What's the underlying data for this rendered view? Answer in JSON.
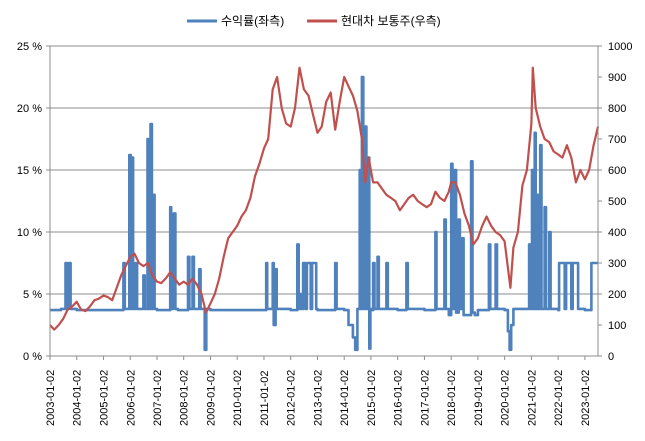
{
  "chart_data": {
    "type": "line",
    "title": "",
    "legend": {
      "position": "top",
      "entries": [
        {
          "name": "수익률(좌측)",
          "color": "#4F81BD"
        },
        {
          "name": "현대차 보통주(우측)",
          "color": "#C0504D"
        }
      ]
    },
    "grid": true,
    "y_left": {
      "label": "",
      "ylim": [
        0,
        25
      ],
      "ticks": [
        0,
        5,
        10,
        15,
        20,
        25
      ],
      "tick_labels": [
        "0 %",
        "5 %",
        "10 %",
        "15 %",
        "20 %",
        "25 %"
      ]
    },
    "y_right": {
      "label": "",
      "ylim": [
        0,
        1000
      ],
      "ticks": [
        0,
        100,
        200,
        300,
        400,
        500,
        600,
        700,
        800,
        900,
        1000
      ],
      "tick_labels": [
        "0",
        "100",
        "200",
        "300",
        "400",
        "500",
        "600",
        "700",
        "800",
        "900",
        "1000"
      ]
    },
    "x_axis": {
      "range": [
        "2003-01-02",
        "2023-06-30"
      ],
      "tick_labels": [
        "2003-01-02",
        "2004-01-02",
        "2005-01-02",
        "2006-01-02",
        "2007-01-02",
        "2008-01-02",
        "2009-01-02",
        "2010-01-02",
        "2011-01-02",
        "2012-01-02",
        "2013-01-02",
        "2014-01-02",
        "2015-01-02",
        "2016-01-02",
        "2017-01-02",
        "2018-01-02",
        "2019-01-02",
        "2020-01-02",
        "2021-01-02",
        "2022-01-02",
        "2023-01-02"
      ]
    },
    "series": [
      {
        "name": "수익률(좌측)",
        "axis": "left",
        "color": "#4F81BD",
        "points": [
          [
            "2003-01-02",
            3.7
          ],
          [
            "2003-03-01",
            3.7
          ],
          [
            "2003-06-01",
            3.8
          ],
          [
            "2003-08-01",
            7.5
          ],
          [
            "2003-08-20",
            3.8
          ],
          [
            "2003-09-15",
            7.5
          ],
          [
            "2003-10-10",
            3.8
          ],
          [
            "2004-01-02",
            3.7
          ],
          [
            "2005-01-02",
            3.7
          ],
          [
            "2005-06-01",
            3.7
          ],
          [
            "2005-10-01",
            7.5
          ],
          [
            "2005-10-20",
            3.8
          ],
          [
            "2005-12-20",
            16.2
          ],
          [
            "2006-01-10",
            3.8
          ],
          [
            "2006-01-25",
            16.0
          ],
          [
            "2006-02-10",
            3.8
          ],
          [
            "2006-03-15",
            7.5
          ],
          [
            "2006-04-05",
            3.8
          ],
          [
            "2006-07-01",
            6.5
          ],
          [
            "2006-07-20",
            3.8
          ],
          [
            "2006-08-25",
            17.5
          ],
          [
            "2006-09-10",
            3.8
          ],
          [
            "2006-10-05",
            18.7
          ],
          [
            "2006-10-25",
            3.8
          ],
          [
            "2006-11-10",
            13.0
          ],
          [
            "2006-11-30",
            3.8
          ],
          [
            "2007-01-02",
            3.7
          ],
          [
            "2007-06-01",
            3.7
          ],
          [
            "2007-07-01",
            12.0
          ],
          [
            "2007-07-15",
            3.8
          ],
          [
            "2007-08-20",
            11.5
          ],
          [
            "2007-09-10",
            3.8
          ],
          [
            "2007-10-15",
            3.7
          ],
          [
            "2008-01-02",
            3.7
          ],
          [
            "2008-03-01",
            8.0
          ],
          [
            "2008-03-20",
            3.8
          ],
          [
            "2008-05-01",
            8.0
          ],
          [
            "2008-05-20",
            3.8
          ],
          [
            "2008-08-01",
            7.0
          ],
          [
            "2008-08-20",
            3.8
          ],
          [
            "2008-10-15",
            0.5
          ],
          [
            "2008-11-05",
            3.8
          ],
          [
            "2009-01-02",
            3.7
          ],
          [
            "2010-01-02",
            3.7
          ],
          [
            "2011-01-02",
            3.7
          ],
          [
            "2011-02-01",
            7.5
          ],
          [
            "2011-02-15",
            3.8
          ],
          [
            "2011-05-01",
            7.5
          ],
          [
            "2011-05-15",
            2.5
          ],
          [
            "2011-06-10",
            7.0
          ],
          [
            "2011-06-25",
            3.8
          ],
          [
            "2012-01-02",
            3.7
          ],
          [
            "2012-04-01",
            9.0
          ],
          [
            "2012-04-20",
            3.8
          ],
          [
            "2012-05-15",
            5.0
          ],
          [
            "2012-06-01",
            3.8
          ],
          [
            "2012-06-20",
            7.5
          ],
          [
            "2012-07-20",
            3.8
          ],
          [
            "2012-08-10",
            7.5
          ],
          [
            "2012-10-01",
            3.8
          ],
          [
            "2012-10-20",
            7.5
          ],
          [
            "2012-12-15",
            3.8
          ],
          [
            "2013-01-02",
            3.7
          ],
          [
            "2013-08-01",
            3.7
          ],
          [
            "2013-09-01",
            7.5
          ],
          [
            "2013-09-20",
            3.8
          ],
          [
            "2014-01-02",
            3.7
          ],
          [
            "2014-03-01",
            2.5
          ],
          [
            "2014-05-01",
            1.5
          ],
          [
            "2014-06-01",
            0.5
          ],
          [
            "2014-07-01",
            3.8
          ],
          [
            "2014-08-01",
            15.0
          ],
          [
            "2014-08-15",
            3.8
          ],
          [
            "2014-09-01",
            22.5
          ],
          [
            "2014-09-20",
            3.8
          ],
          [
            "2014-10-15",
            18.5
          ],
          [
            "2014-11-01",
            3.8
          ],
          [
            "2014-11-20",
            16.0
          ],
          [
            "2014-12-10",
            0.6
          ],
          [
            "2014-12-25",
            3.8
          ],
          [
            "2015-01-02",
            3.7
          ],
          [
            "2015-02-01",
            7.5
          ],
          [
            "2015-02-20",
            3.8
          ],
          [
            "2015-04-01",
            8.0
          ],
          [
            "2015-04-20",
            3.8
          ],
          [
            "2015-08-01",
            7.5
          ],
          [
            "2015-08-20",
            3.8
          ],
          [
            "2016-01-02",
            3.7
          ],
          [
            "2016-05-01",
            7.5
          ],
          [
            "2016-05-20",
            3.8
          ],
          [
            "2017-01-02",
            3.7
          ],
          [
            "2017-06-01",
            10.0
          ],
          [
            "2017-06-15",
            3.8
          ],
          [
            "2017-10-01",
            11.0
          ],
          [
            "2017-10-20",
            3.8
          ],
          [
            "2017-12-01",
            3.3
          ],
          [
            "2018-01-02",
            15.5
          ],
          [
            "2018-01-20",
            3.8
          ],
          [
            "2018-02-20",
            15.0
          ],
          [
            "2018-03-10",
            3.5
          ],
          [
            "2018-04-15",
            11.0
          ],
          [
            "2018-05-01",
            3.8
          ],
          [
            "2018-06-01",
            9.5
          ],
          [
            "2018-06-20",
            3.3
          ],
          [
            "2018-09-01",
            3.3
          ],
          [
            "2018-10-01",
            15.7
          ],
          [
            "2018-10-20",
            3.5
          ],
          [
            "2018-11-20",
            3.3
          ],
          [
            "2019-01-02",
            3.7
          ],
          [
            "2019-06-01",
            9.0
          ],
          [
            "2019-06-20",
            3.8
          ],
          [
            "2019-09-01",
            9.0
          ],
          [
            "2019-09-20",
            3.8
          ],
          [
            "2020-01-02",
            3.7
          ],
          [
            "2020-02-15",
            2.0
          ],
          [
            "2020-03-10",
            0.5
          ],
          [
            "2020-04-01",
            2.5
          ],
          [
            "2020-05-01",
            3.8
          ],
          [
            "2020-10-01",
            3.8
          ],
          [
            "2020-12-01",
            9.0
          ],
          [
            "2020-12-20",
            3.8
          ],
          [
            "2021-01-10",
            15.0
          ],
          [
            "2021-01-25",
            3.8
          ],
          [
            "2021-02-15",
            18.0
          ],
          [
            "2021-03-01",
            3.8
          ],
          [
            "2021-03-20",
            13.0
          ],
          [
            "2021-04-05",
            3.8
          ],
          [
            "2021-05-01",
            17.0
          ],
          [
            "2021-05-20",
            3.8
          ],
          [
            "2021-07-01",
            12.0
          ],
          [
            "2021-07-20",
            3.8
          ],
          [
            "2021-09-01",
            10.0
          ],
          [
            "2021-09-20",
            3.8
          ],
          [
            "2022-01-02",
            3.7
          ],
          [
            "2022-01-15",
            7.5
          ],
          [
            "2022-04-01",
            3.8
          ],
          [
            "2022-04-20",
            7.5
          ],
          [
            "2022-07-01",
            3.8
          ],
          [
            "2022-07-20",
            7.5
          ],
          [
            "2022-10-01",
            3.8
          ],
          [
            "2023-01-02",
            3.7
          ],
          [
            "2023-04-01",
            7.5
          ],
          [
            "2023-06-30",
            7.5
          ]
        ]
      },
      {
        "name": "현대차 보통주(우측)",
        "axis": "right",
        "color": "#C0504D",
        "points": [
          [
            "2003-01-02",
            100
          ],
          [
            "2003-03-01",
            85
          ],
          [
            "2003-05-01",
            100
          ],
          [
            "2003-07-01",
            120
          ],
          [
            "2003-09-01",
            150
          ],
          [
            "2003-11-01",
            160
          ],
          [
            "2004-01-02",
            175
          ],
          [
            "2004-03-01",
            150
          ],
          [
            "2004-05-01",
            145
          ],
          [
            "2004-07-01",
            160
          ],
          [
            "2004-09-01",
            180
          ],
          [
            "2004-11-01",
            185
          ],
          [
            "2005-01-02",
            195
          ],
          [
            "2005-03-01",
            190
          ],
          [
            "2005-05-01",
            180
          ],
          [
            "2005-07-01",
            220
          ],
          [
            "2005-09-01",
            260
          ],
          [
            "2005-11-01",
            290
          ],
          [
            "2006-01-02",
            320
          ],
          [
            "2006-03-01",
            330
          ],
          [
            "2006-05-01",
            300
          ],
          [
            "2006-07-01",
            290
          ],
          [
            "2006-09-01",
            300
          ],
          [
            "2006-11-01",
            260
          ],
          [
            "2007-01-02",
            240
          ],
          [
            "2007-03-01",
            235
          ],
          [
            "2007-05-01",
            250
          ],
          [
            "2007-07-01",
            270
          ],
          [
            "2007-09-01",
            250
          ],
          [
            "2007-11-01",
            230
          ],
          [
            "2008-01-02",
            240
          ],
          [
            "2008-03-01",
            230
          ],
          [
            "2008-05-01",
            250
          ],
          [
            "2008-07-01",
            230
          ],
          [
            "2008-09-01",
            200
          ],
          [
            "2008-11-01",
            140
          ],
          [
            "2009-01-02",
            170
          ],
          [
            "2009-03-01",
            200
          ],
          [
            "2009-05-01",
            250
          ],
          [
            "2009-07-01",
            320
          ],
          [
            "2009-09-01",
            380
          ],
          [
            "2009-11-01",
            400
          ],
          [
            "2010-01-02",
            420
          ],
          [
            "2010-03-01",
            450
          ],
          [
            "2010-05-01",
            470
          ],
          [
            "2010-07-01",
            510
          ],
          [
            "2010-09-01",
            580
          ],
          [
            "2010-11-01",
            620
          ],
          [
            "2011-01-02",
            670
          ],
          [
            "2011-03-01",
            700
          ],
          [
            "2011-05-01",
            860
          ],
          [
            "2011-07-01",
            900
          ],
          [
            "2011-09-01",
            800
          ],
          [
            "2011-11-01",
            750
          ],
          [
            "2012-01-02",
            740
          ],
          [
            "2012-03-01",
            800
          ],
          [
            "2012-05-01",
            930
          ],
          [
            "2012-07-01",
            860
          ],
          [
            "2012-09-01",
            840
          ],
          [
            "2012-11-01",
            780
          ],
          [
            "2013-01-02",
            720
          ],
          [
            "2013-03-01",
            740
          ],
          [
            "2013-05-01",
            820
          ],
          [
            "2013-07-01",
            850
          ],
          [
            "2013-09-01",
            730
          ],
          [
            "2013-11-01",
            820
          ],
          [
            "2014-01-02",
            900
          ],
          [
            "2014-03-01",
            870
          ],
          [
            "2014-05-01",
            840
          ],
          [
            "2014-07-01",
            790
          ],
          [
            "2014-09-01",
            700
          ],
          [
            "2014-10-15",
            560
          ],
          [
            "2014-12-01",
            640
          ],
          [
            "2015-02-01",
            560
          ],
          [
            "2015-04-01",
            560
          ],
          [
            "2015-06-01",
            540
          ],
          [
            "2015-08-01",
            520
          ],
          [
            "2015-10-01",
            510
          ],
          [
            "2015-12-01",
            500
          ],
          [
            "2016-02-01",
            470
          ],
          [
            "2016-04-01",
            490
          ],
          [
            "2016-06-01",
            510
          ],
          [
            "2016-08-01",
            520
          ],
          [
            "2016-10-01",
            500
          ],
          [
            "2016-12-01",
            490
          ],
          [
            "2017-02-01",
            480
          ],
          [
            "2017-04-01",
            490
          ],
          [
            "2017-06-01",
            530
          ],
          [
            "2017-08-01",
            510
          ],
          [
            "2017-10-01",
            500
          ],
          [
            "2017-12-01",
            530
          ],
          [
            "2018-01-02",
            560
          ],
          [
            "2018-03-01",
            560
          ],
          [
            "2018-05-01",
            520
          ],
          [
            "2018-07-01",
            460
          ],
          [
            "2018-09-01",
            420
          ],
          [
            "2018-11-01",
            360
          ],
          [
            "2019-01-02",
            380
          ],
          [
            "2019-03-01",
            420
          ],
          [
            "2019-05-01",
            450
          ],
          [
            "2019-07-01",
            420
          ],
          [
            "2019-09-01",
            400
          ],
          [
            "2019-11-01",
            390
          ],
          [
            "2020-01-02",
            370
          ],
          [
            "2020-03-20",
            220
          ],
          [
            "2020-05-01",
            350
          ],
          [
            "2020-07-01",
            400
          ],
          [
            "2020-09-01",
            550
          ],
          [
            "2020-11-01",
            600
          ],
          [
            "2021-01-02",
            750
          ],
          [
            "2021-01-20",
            930
          ],
          [
            "2021-03-01",
            800
          ],
          [
            "2021-05-01",
            740
          ],
          [
            "2021-07-01",
            700
          ],
          [
            "2021-09-01",
            690
          ],
          [
            "2021-11-01",
            660
          ],
          [
            "2022-01-02",
            650
          ],
          [
            "2022-03-01",
            640
          ],
          [
            "2022-05-01",
            680
          ],
          [
            "2022-07-01",
            640
          ],
          [
            "2022-09-01",
            560
          ],
          [
            "2022-11-01",
            600
          ],
          [
            "2023-01-02",
            570
          ],
          [
            "2023-03-01",
            600
          ],
          [
            "2023-05-01",
            680
          ],
          [
            "2023-06-30",
            740
          ]
        ]
      }
    ]
  }
}
